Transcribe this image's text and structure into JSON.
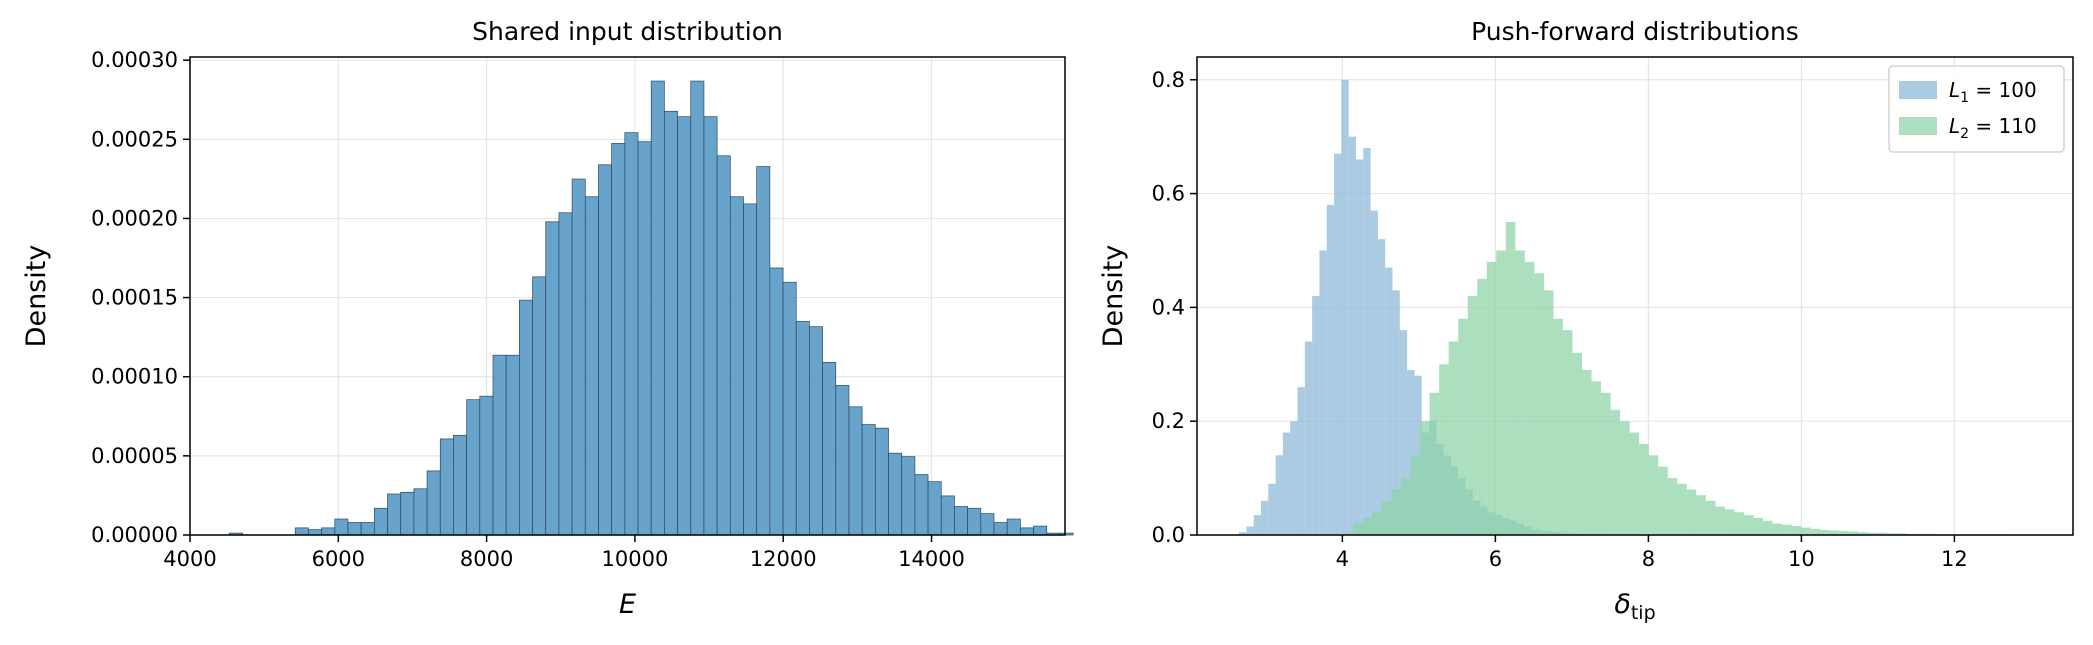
{
  "chart_data": [
    {
      "type": "bar",
      "subtype": "histogram",
      "title": "Shared input distribution",
      "xlabel": "E",
      "ylabel": "Density",
      "xlim": [
        4000,
        15800
      ],
      "ylim": [
        0,
        0.000302
      ],
      "xticks": [
        4000,
        6000,
        8000,
        10000,
        12000,
        14000
      ],
      "xtick_labels": [
        "4000",
        "6000",
        "8000",
        "10000",
        "12000",
        "14000"
      ],
      "yticks": [
        0,
        5e-05,
        0.0001,
        0.00015,
        0.0002,
        0.00025,
        0.0003
      ],
      "ytick_labels": [
        "0.00000",
        "0.00005",
        "0.00010",
        "0.00015",
        "0.00020",
        "0.00025",
        "0.00030"
      ],
      "grid": true,
      "color": "#5b9bc8",
      "edgecolor": "#2c4a60",
      "bin_start": 4530,
      "bin_width": 177.8,
      "values": [
        1.2e-06,
        0,
        0,
        0,
        0,
        4.5e-06,
        3.4e-06,
        4.5e-06,
        1.01e-05,
        7.9e-06,
        7.9e-06,
        1.69e-05,
        2.59e-05,
        2.7e-05,
        2.92e-05,
        4.05e-05,
        6.07e-05,
        6.3e-05,
        8.55e-05,
        8.77e-05,
        0.0001136,
        0.0001136,
        0.0001484,
        0.0001631,
        0.0001979,
        0.0002036,
        0.0002249,
        0.0002137,
        0.0002339,
        0.0002474,
        0.0002542,
        0.0002485,
        0.0002868,
        0.0002677,
        0.0002643,
        0.0002868,
        0.0002643,
        0.0002396,
        0.0002137,
        0.0002092,
        0.0002328,
        0.0001687,
        0.0001597,
        0.0001349,
        0.0001316,
        0.0001091,
        9.45e-05,
        8.1e-05,
        6.98e-05,
        6.75e-05,
        5.17e-05,
        4.95e-05,
        3.82e-05,
        3.37e-05,
        2.47e-05,
        1.8e-05,
        1.69e-05,
        1.35e-05,
        7.9e-06,
        1.01e-05,
        4.5e-06,
        5.6e-06,
        1.2e-06,
        1.2e-06
      ]
    },
    {
      "type": "bar",
      "subtype": "histogram",
      "title": "Push-forward distributions",
      "xlabel": "δ",
      "xlabel_sub": "tip",
      "ylabel": "Density",
      "xlim": [
        2.1,
        13.55
      ],
      "ylim": [
        0,
        0.84
      ],
      "xticks": [
        4,
        6,
        8,
        10,
        12
      ],
      "xtick_labels": [
        "4",
        "6",
        "8",
        "10",
        "12"
      ],
      "yticks": [
        0,
        0.2,
        0.4,
        0.6,
        0.8
      ],
      "ytick_labels": [
        "0.0",
        "0.2",
        "0.4",
        "0.6",
        "0.8"
      ],
      "grid": true,
      "legend_position": "top-right",
      "series": [
        {
          "name": "L",
          "name_sub": "1",
          "name_suffix": " = 100",
          "color": "#8fb9da",
          "bin_start": 2.65,
          "bin_width": 0.0955,
          "values": [
            0.005,
            0.015,
            0.035,
            0.06,
            0.09,
            0.14,
            0.18,
            0.2,
            0.26,
            0.34,
            0.42,
            0.5,
            0.58,
            0.67,
            0.8,
            0.7,
            0.66,
            0.68,
            0.57,
            0.52,
            0.47,
            0.43,
            0.36,
            0.29,
            0.28,
            0.18,
            0.2,
            0.16,
            0.14,
            0.12,
            0.1,
            0.08,
            0.06,
            0.05,
            0.04,
            0.035,
            0.03,
            0.025,
            0.02,
            0.015,
            0.01,
            0.008,
            0.006,
            0.005,
            0.004,
            0.003,
            0.002,
            0.002,
            0.001,
            0.001
          ]
        },
        {
          "name": "L",
          "name_sub": "2",
          "name_suffix": " = 110",
          "color": "#8fd4a8",
          "bin_start": 4.02,
          "bin_width": 0.1245,
          "values": [
            0.005,
            0.02,
            0.03,
            0.04,
            0.06,
            0.08,
            0.1,
            0.14,
            0.2,
            0.25,
            0.3,
            0.34,
            0.38,
            0.42,
            0.45,
            0.48,
            0.5,
            0.55,
            0.5,
            0.48,
            0.46,
            0.43,
            0.38,
            0.36,
            0.32,
            0.29,
            0.27,
            0.25,
            0.22,
            0.2,
            0.18,
            0.16,
            0.14,
            0.12,
            0.1,
            0.09,
            0.08,
            0.07,
            0.06,
            0.05,
            0.045,
            0.04,
            0.035,
            0.03,
            0.025,
            0.02,
            0.018,
            0.016,
            0.013,
            0.011,
            0.009,
            0.008,
            0.007,
            0.006,
            0.005,
            0.004,
            0.004,
            0.003,
            0.003,
            0.002,
            0.002,
            0.002,
            0.001,
            0.001,
            0.001,
            0.001,
            0.001,
            0.001,
            0.001,
            0.001
          ]
        }
      ]
    }
  ]
}
